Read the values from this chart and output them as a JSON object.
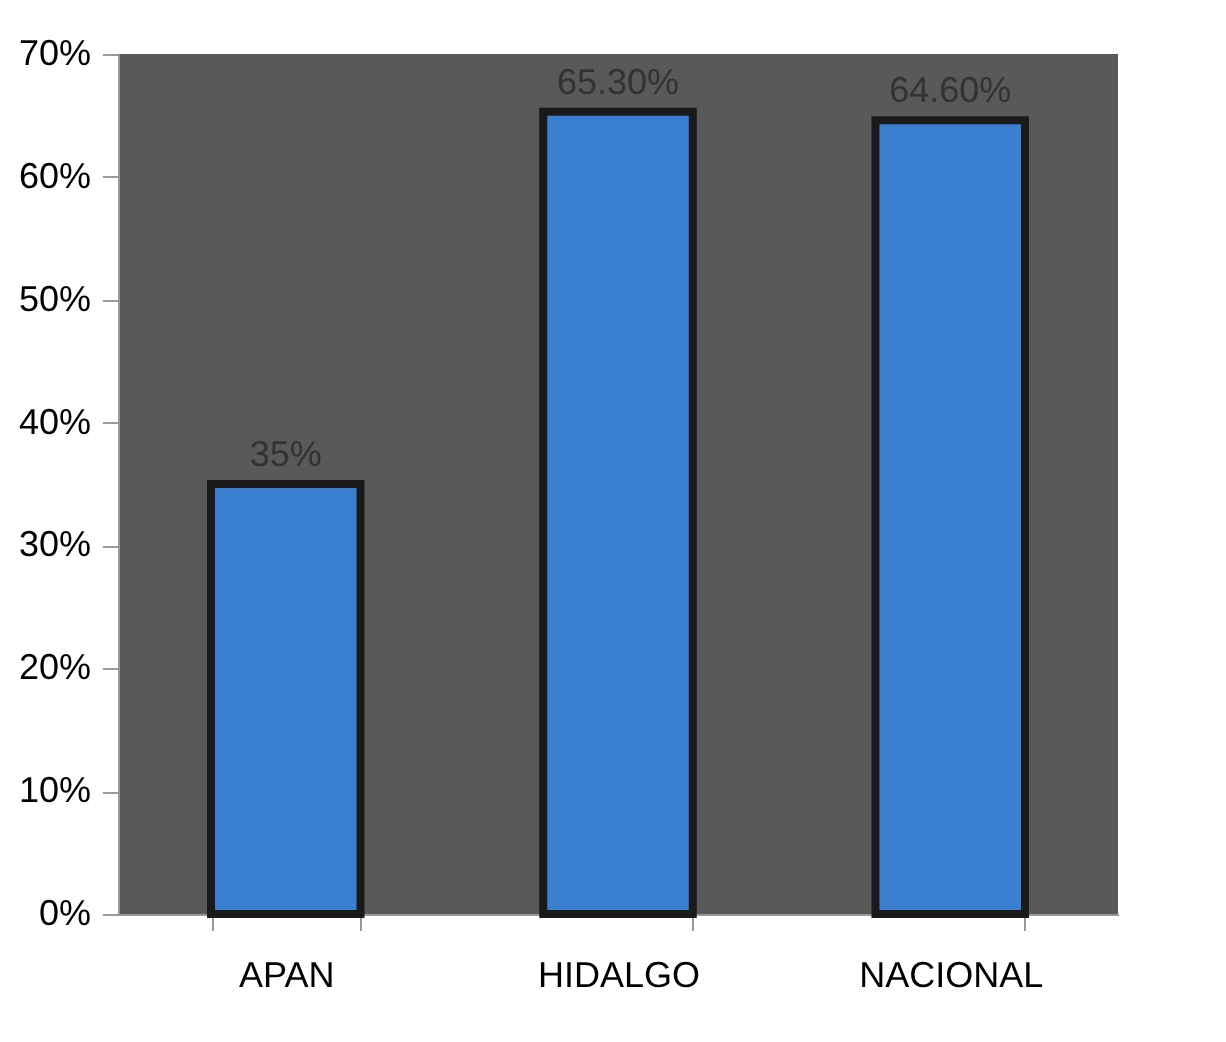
{
  "chart_data": {
    "type": "bar",
    "categories": [
      "APAN",
      "HIDALGO",
      "NACIONAL"
    ],
    "values": [
      35,
      65.3,
      64.6
    ],
    "color": "#3b7fd1",
    "value_labels": [
      "35%",
      "65.30%",
      "64.60%"
    ],
    "ylim": [
      0,
      70
    ],
    "yticks": [
      {
        "value": 0,
        "label": "0%"
      },
      {
        "value": 10,
        "label": "10%"
      },
      {
        "value": 20,
        "label": "20%"
      },
      {
        "value": 30,
        "label": "30%"
      },
      {
        "value": 40,
        "label": "40%"
      },
      {
        "value": 50,
        "label": "50%"
      },
      {
        "value": 60,
        "label": "60%"
      },
      {
        "value": 70,
        "label": "70%"
      }
    ],
    "grid": false
  }
}
